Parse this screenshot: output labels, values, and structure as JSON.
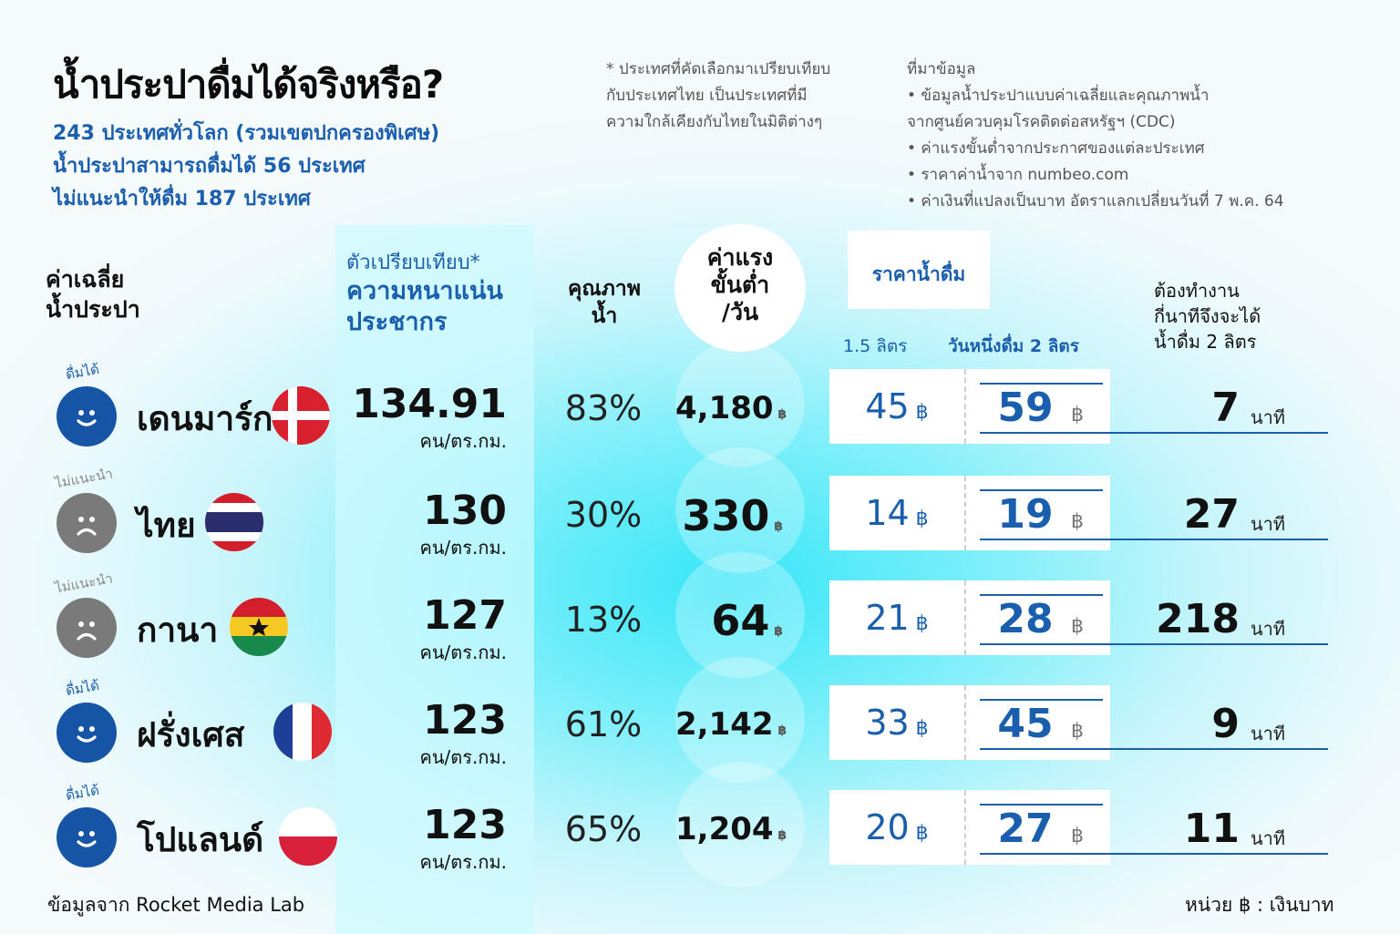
{
  "header": {
    "title": "น้ำประปาดื่มได้จริงหรือ?",
    "sub_lines": [
      "243 ประเทศทั่วโลก (รวมเขตปกครองพิเศษ)",
      "น้ำประปาสามารถดื่มได้ 56 ประเทศ",
      "ไม่แนะนำให้ดื่ม 187 ประเทศ"
    ],
    "note_lines": [
      "* ประเทศที่คัดเลือกมาเปรียบเทียบ",
      "กับประเทศไทย เป็นประเทศที่มี",
      "ความใกล้เคียงกับไทยในมิติต่างๆ"
    ],
    "source_lines": [
      "ที่มาข้อมูล",
      "• ข้อมูลน้ำประปาแบบค่าเฉลี่ยและคุณภาพน้ำ",
      "จากศูนย์ควบคุมโรคติดต่อสหรัฐฯ (CDC)",
      "• ค่าแรงขั้นต่ำจากประกาศของแต่ละประเทศ",
      "• ราคาค่าน้ำจาก numbeo.com",
      "• ค่าเงินที่แปลงเป็นบาท อัตราแลกเปลี่ยนวันที่ 7 พ.ค. 64"
    ]
  },
  "columns": {
    "avg_line1": "ค่าเฉลี่ย",
    "avg_line2": "น้ำประปา",
    "compare_sub": "ตัวเปรียบเทียบ*",
    "compare_line1": "ความหนาแน่น",
    "compare_line2": "ประชากร",
    "quality_line1": "คุณภาพ",
    "quality_line2": "น้ำ",
    "wage_line1": "ค่าแรง",
    "wage_line2": "ขั้นต่ำ",
    "wage_line3": "/วัน",
    "price_title": "ราคาน้ำดื่ม",
    "price_15": "1.5 ลิตร",
    "price_2l": "วันหนึ่งดื่ม 2 ลิตร",
    "work_line1": "ต้องทำงาน",
    "work_line2": "กี่นาทีจึงจะได้",
    "work_line3": "น้ำดื่ม 2 ลิตร"
  },
  "chart_data": {
    "type": "table",
    "title": "น้ำประปาดื่มได้จริงหรือ?",
    "rows": [
      {
        "country": "เดนมาร์ก",
        "flag": "denmark-flag",
        "status": "ดื่มได้",
        "drinkable": true,
        "density": "134.91",
        "density_unit": "คน/ตร.กม.",
        "quality": "83%",
        "wage": "4,180",
        "price_15": "45",
        "price_2l": "59",
        "minutes": "7"
      },
      {
        "country": "ไทย",
        "flag": "thailand-flag",
        "status": "ไม่แนะนำ",
        "drinkable": false,
        "density": "130",
        "density_unit": "คน/ตร.กม.",
        "quality": "30%",
        "wage": "330",
        "price_15": "14",
        "price_2l": "19",
        "minutes": "27"
      },
      {
        "country": "กานา",
        "flag": "ghana-flag",
        "status": "ไม่แนะนำ",
        "drinkable": false,
        "density": "127",
        "density_unit": "คน/ตร.กม.",
        "quality": "13%",
        "wage": "64",
        "price_15": "21",
        "price_2l": "28",
        "minutes": "218"
      },
      {
        "country": "ฝรั่งเศส",
        "flag": "france-flag",
        "status": "ดื่มได้",
        "drinkable": true,
        "density": "123",
        "density_unit": "คน/ตร.กม.",
        "quality": "61%",
        "wage": "2,142",
        "price_15": "33",
        "price_2l": "45",
        "minutes": "9"
      },
      {
        "country": "โปแลนด์",
        "flag": "poland-flag",
        "status": "ดื่มได้",
        "drinkable": true,
        "density": "123",
        "density_unit": "คน/ตร.กม.",
        "quality": "65%",
        "wage": "1,204",
        "price_15": "20",
        "price_2l": "27",
        "minutes": "11"
      }
    ],
    "currency_symbol": "฿",
    "minutes_unit": "นาที"
  },
  "footer": {
    "credit": "ข้อมูลจาก Rocket Media Lab",
    "unit": "หน่วย ฿ : เงินบาท"
  },
  "colors": {
    "accent_blue": "#1a5fae",
    "drinkable": "#1655a6",
    "not_recommended": "#7a7a7a"
  }
}
